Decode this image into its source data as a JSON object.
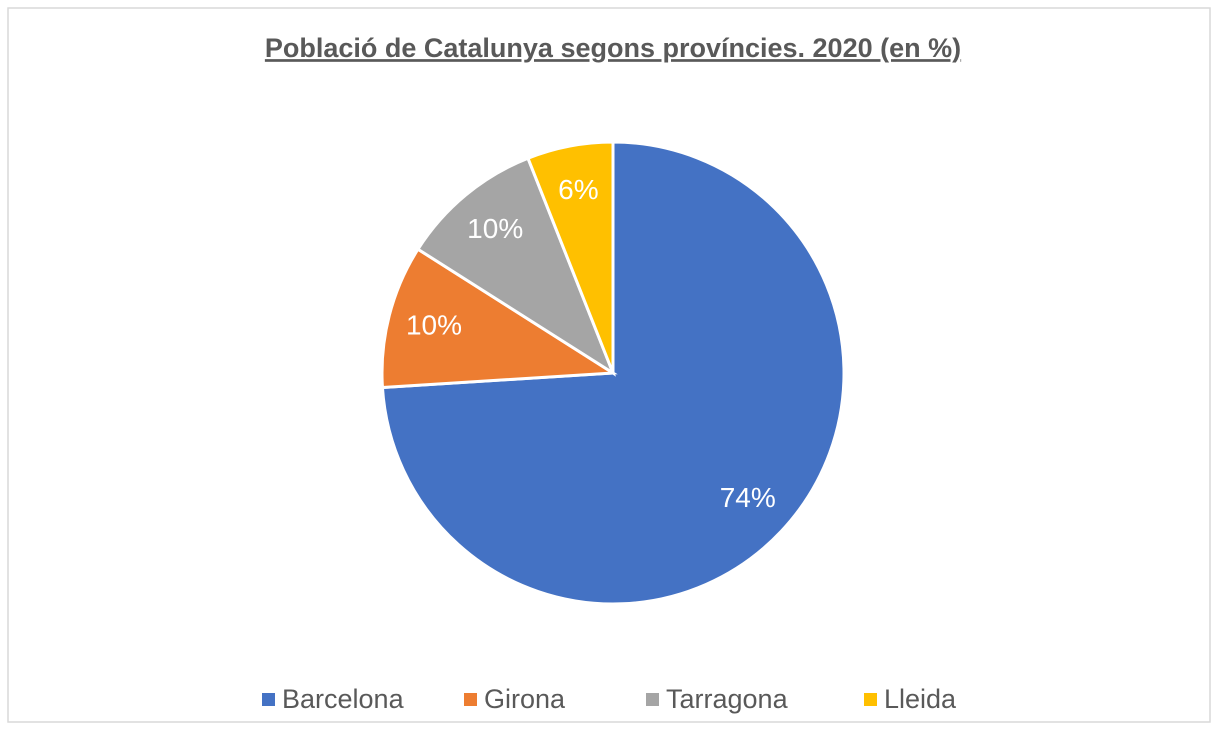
{
  "chart_data": {
    "type": "pie",
    "title": "Població de Catalunya segons províncies. 2020 (en %)",
    "categories": [
      "Barcelona",
      "Girona",
      "Tarragona",
      "Lleida"
    ],
    "values": [
      74,
      10,
      10,
      6
    ],
    "value_labels": [
      "74%",
      "10%",
      "10%",
      "6%"
    ],
    "colors": [
      "#4472c4",
      "#ed7d31",
      "#a5a5a5",
      "#ffc000"
    ],
    "legend": "bottom"
  }
}
